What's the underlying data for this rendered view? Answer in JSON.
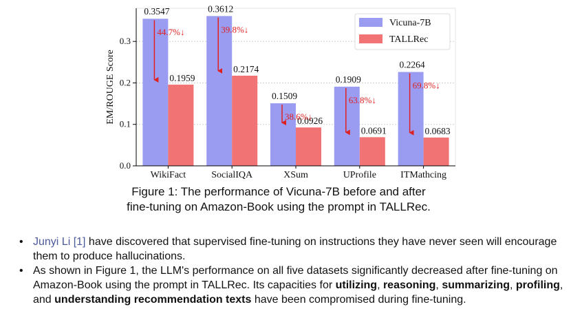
{
  "chart_data": {
    "type": "bar",
    "categories": [
      "WikiFact",
      "SocialIQA",
      "XSum",
      "UProfile",
      "ITMathcing"
    ],
    "series": [
      {
        "name": "Vicuna-7B",
        "values": [
          0.3547,
          0.3612,
          0.1509,
          0.1909,
          0.2264
        ],
        "color": "#9a9cf2"
      },
      {
        "name": "TALLRec",
        "values": [
          0.1959,
          0.2174,
          0.0926,
          0.0691,
          0.0683
        ],
        "color": "#f17373"
      }
    ],
    "value_labels": {
      "Vicuna-7B": [
        "0.3547",
        "0.3612",
        "0.1509",
        "0.1909",
        "0.2264"
      ],
      "TALLRec": [
        "0.1959",
        "0.2174",
        "0.0926",
        "0.0691",
        "0.0683"
      ]
    },
    "drop_annotations": [
      "44.7%↓",
      "39.8%↓",
      "38.6%↓",
      "63.8%↓",
      "69.8%↓"
    ],
    "annotation_color": "#e02020",
    "ylabel": "EM/ROUGE Score",
    "yticks": [
      "0.0",
      "0.1",
      "0.2",
      "0.3"
    ],
    "ylim": [
      0,
      0.38
    ],
    "grid": true,
    "legend_position": "top-right"
  },
  "caption": {
    "line1": "Figure 1: The performance of Vicuna-7B before and after",
    "line2": "fine-tuning on Amazon-Book using the prompt in TALLRec."
  },
  "bullets": {
    "b1_link": "Junyi Li [1]",
    "b1_rest": " have discovered that supervised fine-tuning on instructions they have never seen will encourage them to produce hallucinations.",
    "b2_a": "As shown in Figure 1, the LLM's performance on all five datasets significantly decreased after fine-tuning on Amazon-Book using the prompt in TALLRec. Its capacities for ",
    "b2_utilizing": "utilizing",
    "b2_sep1": ", ",
    "b2_reasoning": "reasoning",
    "b2_sep2": ", ",
    "b2_summarizing": "summarizing",
    "b2_sep3": ", ",
    "b2_profiling": "profiling",
    "b2_sep4": ", and ",
    "b2_understanding": "understanding recommendation texts",
    "b2_end": " have been compromised during fine-tuning."
  }
}
